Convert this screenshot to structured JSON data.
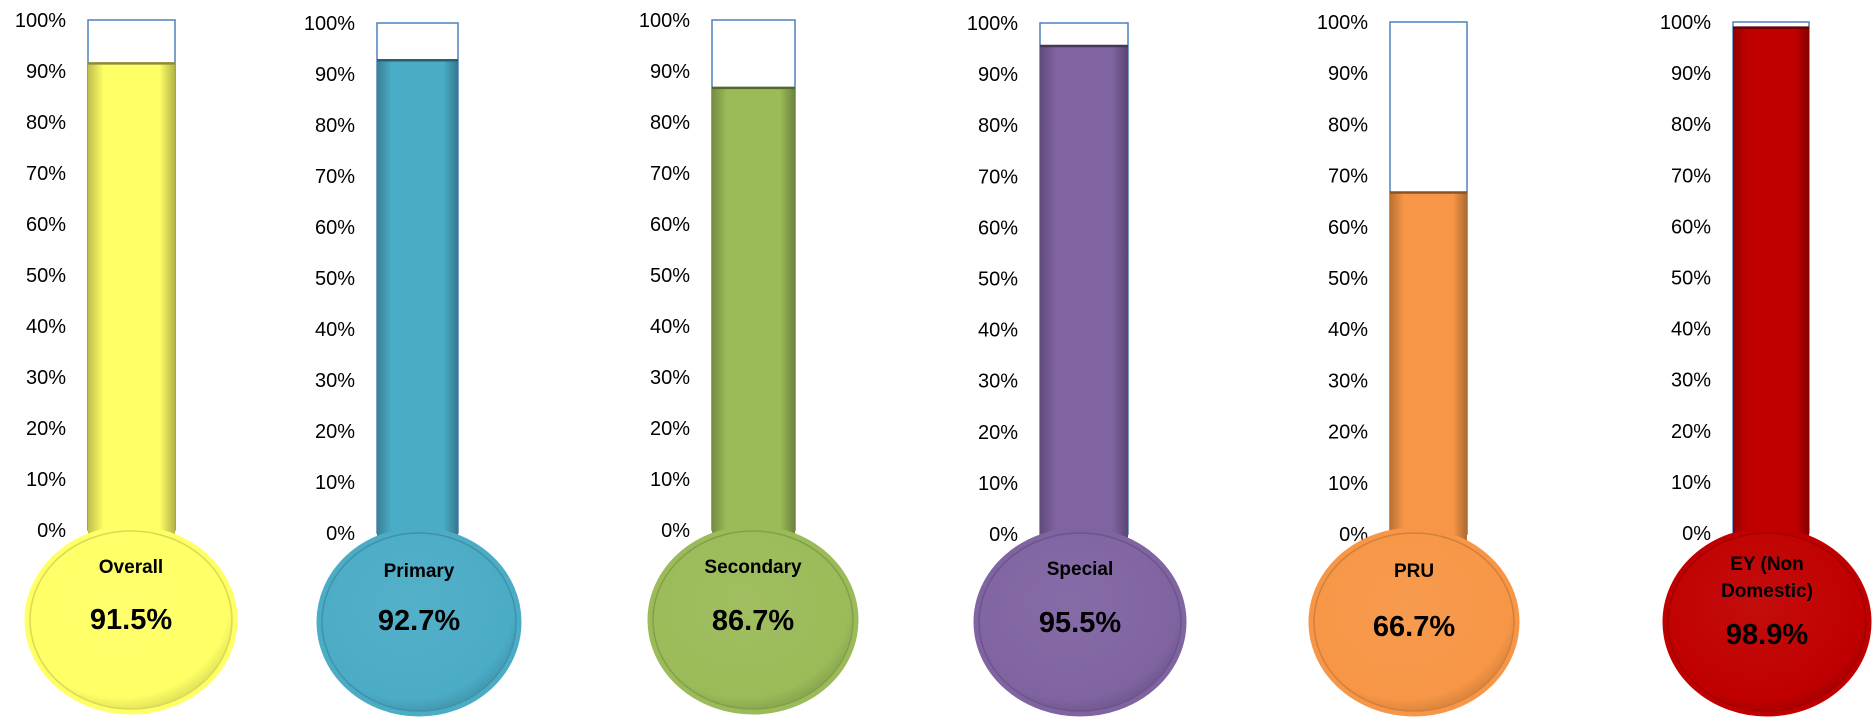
{
  "chart_data": {
    "type": "bar",
    "categories": [
      "Overall",
      "Primary",
      "Secondary",
      "Special",
      "PRU",
      "EY (Non Domestic)"
    ],
    "values": [
      91.5,
      92.7,
      86.7,
      95.5,
      66.7,
      98.9
    ],
    "value_labels": [
      "91.5%",
      "92.7%",
      "86.7%",
      "95.5%",
      "66.7%",
      "98.9%"
    ],
    "colors": [
      "#ffff66",
      "#4bacc6",
      "#9bbb59",
      "#8064a2",
      "#f79646",
      "#c00000"
    ],
    "ylim": [
      0,
      100
    ],
    "y_ticks": [
      "0%",
      "10%",
      "20%",
      "30%",
      "40%",
      "50%",
      "60%",
      "70%",
      "80%",
      "90%",
      "100%"
    ],
    "grid": false,
    "legend": "none",
    "style": "thermometer"
  }
}
